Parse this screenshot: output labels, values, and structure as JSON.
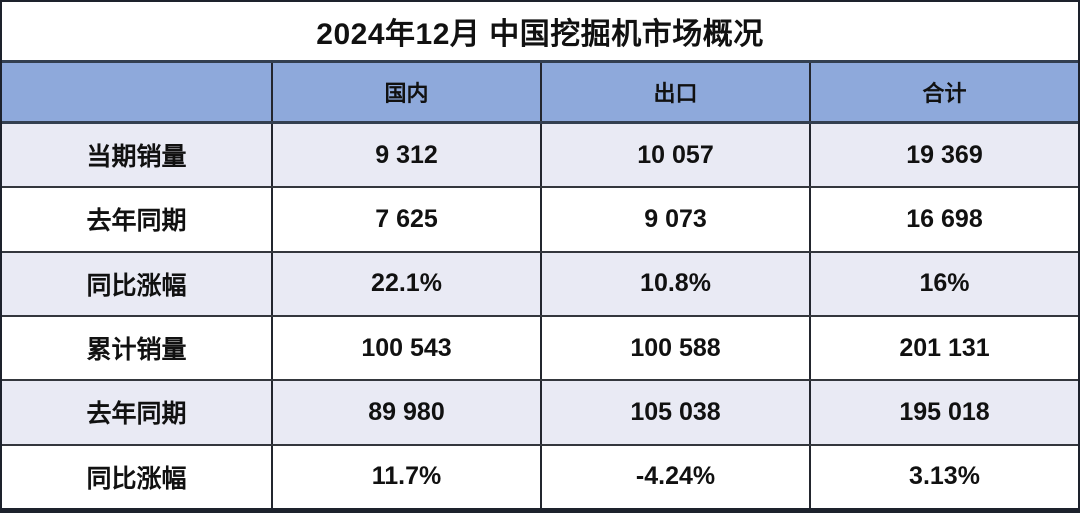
{
  "title": "2024年12月 中国挖掘机市场概况",
  "chart_data": {
    "type": "table",
    "title": "2024年12月 中国挖掘机市场概况",
    "columns": [
      "",
      "国内",
      "出口",
      "合计"
    ],
    "rows": [
      [
        "当期销量",
        "9 312",
        "10 057",
        "19 369"
      ],
      [
        "去年同期",
        "7 625",
        "9 073",
        "16 698"
      ],
      [
        "同比涨幅",
        "22.1%",
        "10.8%",
        "16%"
      ],
      [
        "累计销量",
        "100 543",
        "100 588",
        "201 131"
      ],
      [
        "去年同期",
        "89 980",
        "105 038",
        "195 018"
      ],
      [
        "同比涨幅",
        "11.7%",
        "-4.24%",
        "3.13%"
      ]
    ],
    "numeric": {
      "categories": [
        "国内",
        "出口",
        "合计"
      ],
      "current_sales": [
        9312,
        10057,
        19369
      ],
      "current_sales_last_year": [
        7625,
        9073,
        16698
      ],
      "current_yoy_change_pct": [
        22.1,
        10.8,
        16
      ],
      "cumulative_sales": [
        100543,
        100588,
        201131
      ],
      "cumulative_sales_last_year": [
        89980,
        105038,
        195018
      ],
      "cumulative_yoy_change_pct": [
        11.7,
        -4.24,
        3.13
      ]
    }
  },
  "colors": {
    "header_bg": "#8EA9DB",
    "row_alt_bg": "#E9EAF4",
    "row_bg": "#FFFFFF",
    "heavy_border": "#333F50",
    "grid_line": "#23262E",
    "outer_border": "#1D222C",
    "text": "#111111"
  }
}
